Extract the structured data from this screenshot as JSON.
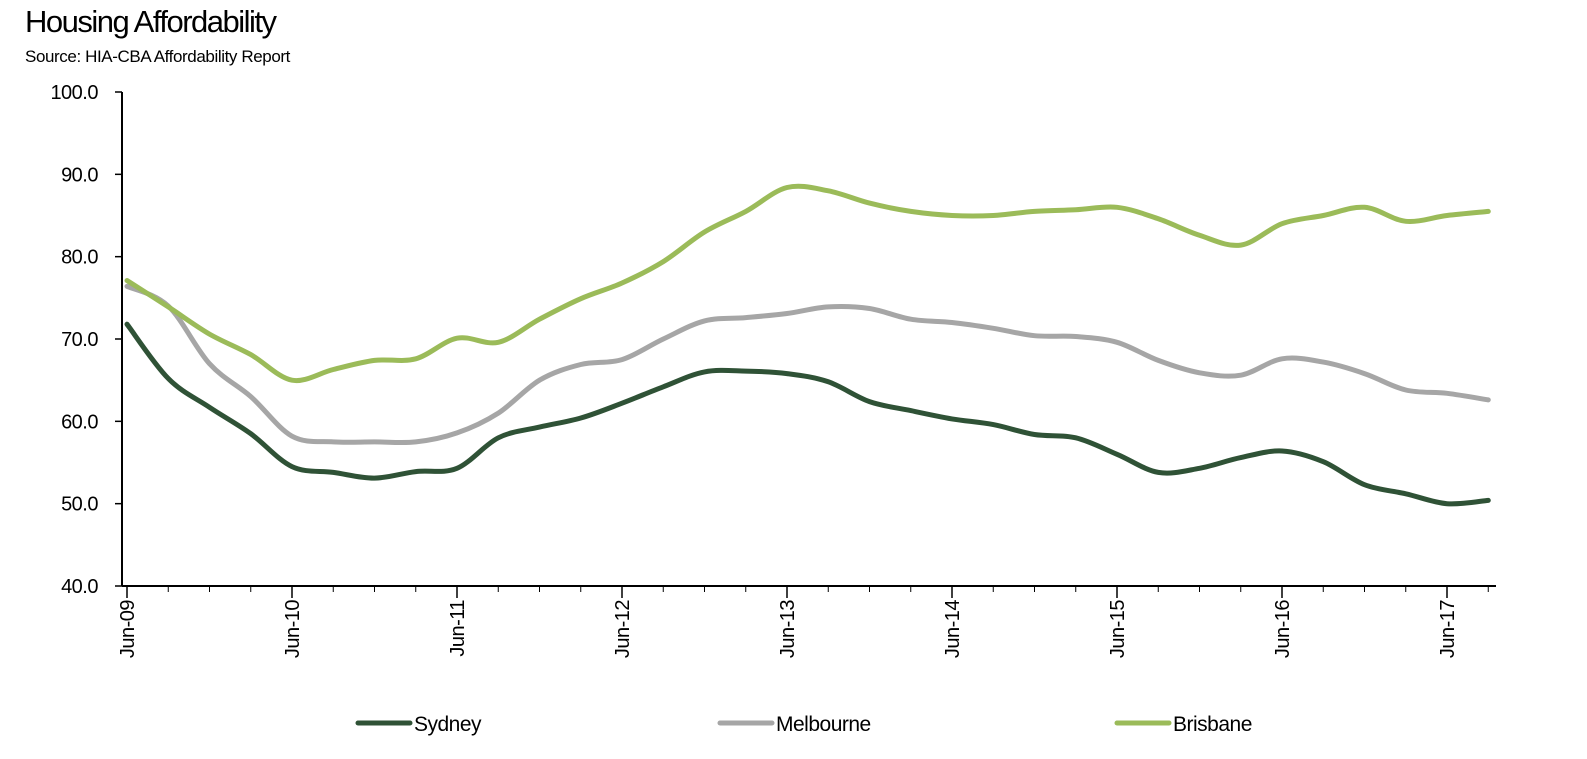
{
  "header": {
    "title": "Housing Affordability",
    "subtitle": "Source: HIA-CBA Affordability Report"
  },
  "colors": {
    "sydney": "#2f5236",
    "melbourne": "#a6a6a6",
    "brisbane": "#9bbb59",
    "axis": "#000000"
  },
  "chart_data": {
    "type": "line",
    "title": "Housing Affordability",
    "subtitle": "Source: HIA-CBA Affordability Report",
    "xlabel": "",
    "ylabel": "",
    "ylim": [
      40,
      100
    ],
    "yticks": [
      "40.0",
      "50.0",
      "60.0",
      "70.0",
      "80.0",
      "90.0",
      "100.0"
    ],
    "xticks": [
      "Jun-09",
      "Jun-10",
      "Jun-11",
      "Jun-12",
      "Jun-13",
      "Jun-14",
      "Jun-15",
      "Jun-16",
      "Jun-17"
    ],
    "x": [
      "Jun-09",
      "Sep-09",
      "Dec-09",
      "Mar-10",
      "Jun-10",
      "Sep-10",
      "Dec-10",
      "Mar-11",
      "Jun-11",
      "Sep-11",
      "Dec-11",
      "Mar-12",
      "Jun-12",
      "Sep-12",
      "Dec-12",
      "Mar-13",
      "Jun-13",
      "Sep-13",
      "Dec-13",
      "Mar-14",
      "Jun-14",
      "Sep-14",
      "Dec-14",
      "Mar-15",
      "Jun-15",
      "Sep-15",
      "Dec-15",
      "Mar-16",
      "Jun-16",
      "Sep-16",
      "Dec-16",
      "Mar-17",
      "Jun-17",
      "Sep-17"
    ],
    "grid": false,
    "legend": "bottom",
    "series": [
      {
        "name": "Sydney",
        "color": "#2f5236",
        "values": [
          71.8,
          65.2,
          61.7,
          58.5,
          54.5,
          53.8,
          53.1,
          53.9,
          54.3,
          58.0,
          59.3,
          60.4,
          62.2,
          64.2,
          66.0,
          66.1,
          65.8,
          64.8,
          62.4,
          61.3,
          60.3,
          59.6,
          58.4,
          58.0,
          56.0,
          53.8,
          54.3,
          55.6,
          56.4,
          55.1,
          52.3,
          51.2,
          50.0,
          50.4
        ]
      },
      {
        "name": "Melbourne",
        "color": "#a6a6a6",
        "values": [
          76.4,
          74.0,
          67.0,
          63.0,
          58.2,
          57.5,
          57.5,
          57.5,
          58.6,
          61.0,
          65.0,
          66.9,
          67.5,
          70.0,
          72.2,
          72.6,
          73.1,
          73.9,
          73.7,
          72.4,
          72.0,
          71.3,
          70.4,
          70.3,
          69.6,
          67.4,
          65.9,
          65.6,
          67.6,
          67.2,
          65.8,
          63.8,
          63.4,
          62.6
        ]
      },
      {
        "name": "Brisbane",
        "color": "#9bbb59",
        "values": [
          77.1,
          73.9,
          70.6,
          68.1,
          65.0,
          66.3,
          67.4,
          67.6,
          70.1,
          69.6,
          72.4,
          74.9,
          76.8,
          79.4,
          83.0,
          85.5,
          88.4,
          88.0,
          86.5,
          85.5,
          85.0,
          85.0,
          85.5,
          85.7,
          86.0,
          84.6,
          82.6,
          81.4,
          84.0,
          85.0,
          86.0,
          84.3,
          85.0,
          85.5
        ]
      }
    ]
  }
}
